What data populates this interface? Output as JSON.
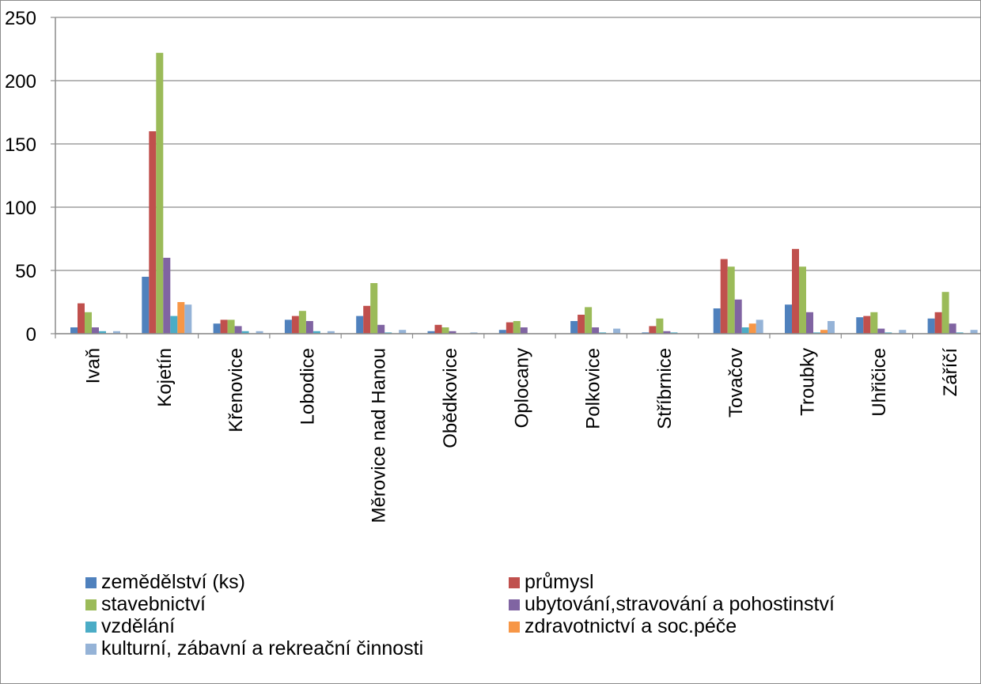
{
  "chart_data": {
    "type": "bar",
    "ylim": [
      0,
      250
    ],
    "yticks": [
      "0",
      "50",
      "100",
      "150",
      "200",
      "250"
    ],
    "grid": true,
    "legend_position": "bottom",
    "categories": [
      "Ivaň",
      "Kojetín",
      "Křenovice",
      "Lobodice",
      "Měrovice nad Hanou",
      "Obědkovice",
      "Oplocany",
      "Polkovice",
      "Stříbrnice",
      "Tovačov",
      "Troubky",
      "Uhřičice",
      "Záříčí"
    ],
    "series": [
      {
        "name": "zemědělství (ks)",
        "color": "#4F81BD",
        "values": [
          5,
          45,
          8,
          11,
          14,
          2,
          3,
          10,
          1,
          20,
          23,
          13,
          12
        ]
      },
      {
        "name": "průmysl",
        "color": "#C0504D",
        "values": [
          24,
          160,
          11,
          14,
          22,
          7,
          9,
          15,
          6,
          59,
          67,
          14,
          17
        ]
      },
      {
        "name": "stavebnictví",
        "color": "#9BBB59",
        "values": [
          17,
          222,
          11,
          18,
          40,
          5,
          10,
          21,
          12,
          53,
          53,
          17,
          33
        ]
      },
      {
        "name": "ubytování,stravování a pohostinství",
        "color": "#8064A2",
        "values": [
          5,
          60,
          6,
          10,
          7,
          2,
          5,
          5,
          2,
          27,
          17,
          4,
          8
        ]
      },
      {
        "name": "vzdělání",
        "color": "#4BACC6",
        "values": [
          2,
          14,
          2,
          2,
          1,
          0,
          0,
          1,
          1,
          5,
          1,
          1,
          1
        ]
      },
      {
        "name": "zdravotnictví a soc.péče",
        "color": "#F79646",
        "values": [
          0,
          25,
          0,
          0,
          0,
          0,
          0,
          0,
          0,
          8,
          3,
          0,
          0
        ]
      },
      {
        "name": "kulturní, zábavní a rekreační činnosti",
        "color": "#95B3D7",
        "values": [
          2,
          23,
          2,
          2,
          3,
          1,
          0,
          4,
          0,
          11,
          10,
          3,
          3
        ]
      }
    ]
  }
}
